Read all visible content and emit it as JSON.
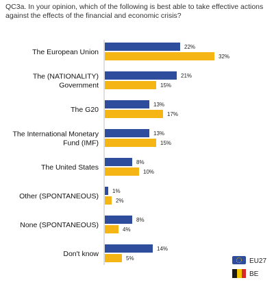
{
  "question": "QC3a. In your opinion, which of the following is best able to take effective actions against the effects of the financial and economic crisis?",
  "chart_data": {
    "type": "bar",
    "orientation": "horizontal",
    "categories": [
      [
        "The European Union"
      ],
      [
        "The (NATIONALITY)",
        "Government"
      ],
      [
        "The G20"
      ],
      [
        "The International Monetary",
        "Fund (IMF)"
      ],
      [
        "The United States"
      ],
      [
        "Other (SPONTANEOUS)"
      ],
      [
        "None (SPONTANEOUS)"
      ],
      [
        "Don't know"
      ]
    ],
    "series": [
      {
        "name": "EU27",
        "color": "#2e4d9c",
        "values": [
          22,
          21,
          13,
          13,
          8,
          1,
          8,
          14
        ]
      },
      {
        "name": "BE",
        "color": "#f5b514",
        "values": [
          32,
          15,
          17,
          15,
          10,
          2,
          4,
          5
        ]
      }
    ],
    "value_suffix": "%",
    "xlim": [
      0,
      32
    ],
    "legend_position": "bottom-right",
    "legend_icons": [
      "eu-flag-icon",
      "belgium-flag-icon"
    ]
  }
}
